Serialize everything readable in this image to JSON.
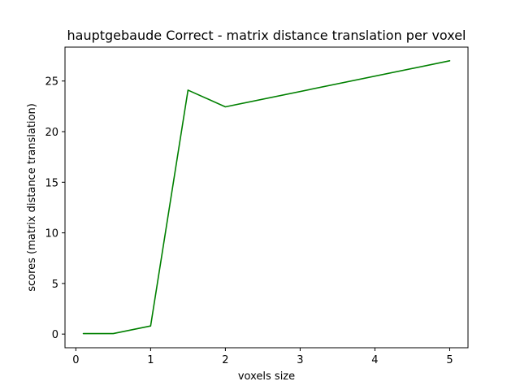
{
  "chart_data": {
    "type": "line",
    "title": "hauptgebaude Correct - matrix distance translation per voxel",
    "xlabel": "voxels size",
    "ylabel": "scores (matrix distance translation)",
    "xlim": [
      -0.145,
      5.245
    ],
    "ylim": [
      -1.35,
      28.35
    ],
    "x_ticks": [
      0,
      1,
      2,
      3,
      4,
      5
    ],
    "y_ticks": [
      0,
      5,
      10,
      15,
      20,
      25
    ],
    "grid": false,
    "series": [
      {
        "color": "#008000",
        "x": [
          0.1,
          0.5,
          1.0,
          1.5,
          2.0,
          5.0
        ],
        "y": [
          0.05,
          0.05,
          0.8,
          24.1,
          22.45,
          27.0
        ]
      }
    ]
  }
}
